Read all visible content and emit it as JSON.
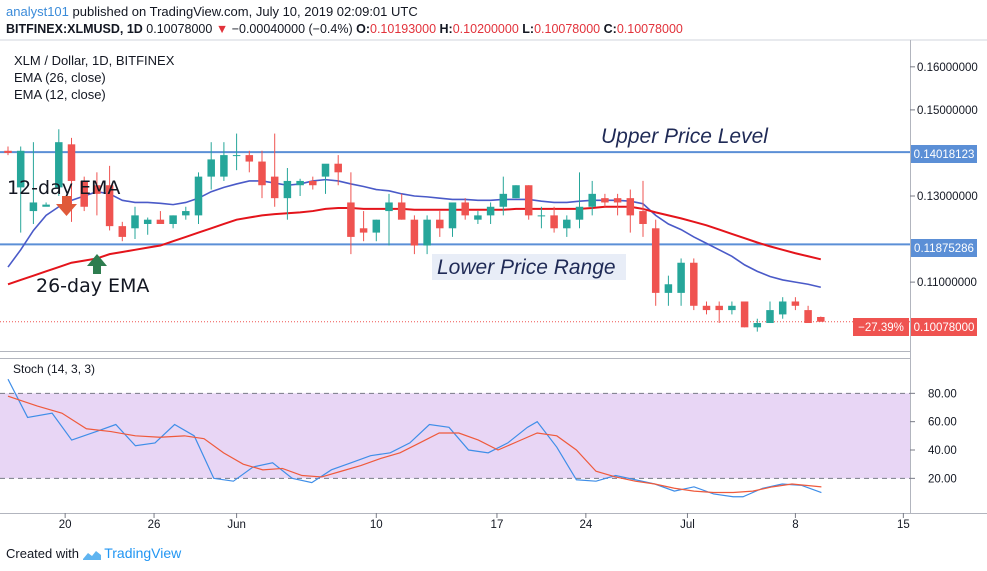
{
  "header": {
    "author": "analyst101",
    "published": "published on TradingView.com, July 10, 2019 02:09:01 UTC",
    "symbol": "BITFINEX:XLMUSD, 1D",
    "close_value": "0.10078000",
    "change": "−0.00040000 (−0.4%)",
    "open_label": "O:",
    "open": "0.10193000",
    "high_label": "H:",
    "high": "0.10200000",
    "low_label": "L:",
    "low": "0.10078000",
    "close_label": "C:",
    "close": "0.10078000"
  },
  "legend": {
    "title": "XLM / Dollar, 1D, BITFINEX",
    "ema26": "EMA (26, close)",
    "ema12": "EMA (12, close)",
    "stoch": "Stoch (14, 3, 3)"
  },
  "annotations": {
    "upper": "Upper Price Level",
    "lower": "Lower Price Range",
    "ema12": "12-day EMA",
    "ema26": "26-day EMA"
  },
  "price_labels": {
    "upper_level": "0.14018123",
    "lower_level": "0.11875286",
    "last_price": "0.10078000",
    "last_change": "−27.39%"
  },
  "footer": {
    "created": "Created with",
    "brand": "TradingView"
  },
  "colors": {
    "up": "#26a69a",
    "down": "#ef5350",
    "ema12": "#4a5ac8",
    "ema26": "#e4141b",
    "level": "#5b8fd6",
    "stochK": "#3f8ee8",
    "stochD": "#ef5a3c",
    "stochBand": "#e8d6f5",
    "lastPrice": "#ef5350"
  },
  "chart_data": [
    {
      "type": "candlestick",
      "title": "XLM / Dollar, 1D, BITFINEX",
      "ylim": [
        0.094,
        0.166
      ],
      "yticks": [
        "0.16000000",
        "0.15000000",
        "0.13000000",
        "0.11000000"
      ],
      "xticks": [
        "20",
        "26",
        "Jun",
        "10",
        "17",
        "24",
        "Jul",
        "8",
        "15"
      ],
      "levels": [
        {
          "name": "Upper Price Level",
          "value": 0.14018123
        },
        {
          "name": "Lower Price Range",
          "value": 0.11875286
        }
      ],
      "last_price": 0.10078,
      "candles": [
        {
          "o": 0.1405,
          "h": 0.1415,
          "l": 0.1395,
          "c": 0.14
        },
        {
          "o": 0.132,
          "h": 0.1415,
          "l": 0.1215,
          "c": 0.1405
        },
        {
          "o": 0.1265,
          "h": 0.1425,
          "l": 0.1235,
          "c": 0.1285
        },
        {
          "o": 0.1275,
          "h": 0.1285,
          "l": 0.128,
          "c": 0.128
        },
        {
          "o": 0.132,
          "h": 0.1455,
          "l": 0.13,
          "c": 0.1425
        },
        {
          "o": 0.142,
          "h": 0.1435,
          "l": 0.124,
          "c": 0.1335
        },
        {
          "o": 0.1335,
          "h": 0.1345,
          "l": 0.1265,
          "c": 0.1275
        },
        {
          "o": 0.1325,
          "h": 0.1355,
          "l": 0.1255,
          "c": 0.1305
        },
        {
          "o": 0.1325,
          "h": 0.137,
          "l": 0.122,
          "c": 0.123
        },
        {
          "o": 0.123,
          "h": 0.124,
          "l": 0.1195,
          "c": 0.1205
        },
        {
          "o": 0.1225,
          "h": 0.1275,
          "l": 0.12,
          "c": 0.1255
        },
        {
          "o": 0.1235,
          "h": 0.125,
          "l": 0.121,
          "c": 0.1245
        },
        {
          "o": 0.1245,
          "h": 0.1265,
          "l": 0.1235,
          "c": 0.1235
        },
        {
          "o": 0.1235,
          "h": 0.1255,
          "l": 0.1225,
          "c": 0.1255
        },
        {
          "o": 0.1255,
          "h": 0.1275,
          "l": 0.1245,
          "c": 0.1265
        },
        {
          "o": 0.1255,
          "h": 0.1355,
          "l": 0.1235,
          "c": 0.1345
        },
        {
          "o": 0.1345,
          "h": 0.1425,
          "l": 0.1315,
          "c": 0.1385
        },
        {
          "o": 0.1345,
          "h": 0.1425,
          "l": 0.1335,
          "c": 0.1395
        },
        {
          "o": 0.1395,
          "h": 0.1445,
          "l": 0.136,
          "c": 0.1395
        },
        {
          "o": 0.1395,
          "h": 0.1405,
          "l": 0.1355,
          "c": 0.138
        },
        {
          "o": 0.138,
          "h": 0.1405,
          "l": 0.1295,
          "c": 0.1325
        },
        {
          "o": 0.1345,
          "h": 0.1445,
          "l": 0.1275,
          "c": 0.1295
        },
        {
          "o": 0.1295,
          "h": 0.1365,
          "l": 0.1245,
          "c": 0.1335
        },
        {
          "o": 0.1325,
          "h": 0.134,
          "l": 0.13,
          "c": 0.1335
        },
        {
          "o": 0.1335,
          "h": 0.1345,
          "l": 0.1315,
          "c": 0.1325
        },
        {
          "o": 0.1345,
          "h": 0.137,
          "l": 0.1305,
          "c": 0.1375
        },
        {
          "o": 0.1375,
          "h": 0.1395,
          "l": 0.1325,
          "c": 0.1355
        },
        {
          "o": 0.1285,
          "h": 0.1355,
          "l": 0.1165,
          "c": 0.1205
        },
        {
          "o": 0.1225,
          "h": 0.1265,
          "l": 0.1195,
          "c": 0.1215
        },
        {
          "o": 0.1215,
          "h": 0.1245,
          "l": 0.1195,
          "c": 0.1245
        },
        {
          "o": 0.1265,
          "h": 0.1305,
          "l": 0.1185,
          "c": 0.1285
        },
        {
          "o": 0.1285,
          "h": 0.1305,
          "l": 0.1245,
          "c": 0.1245
        },
        {
          "o": 0.1245,
          "h": 0.1255,
          "l": 0.1165,
          "c": 0.1185
        },
        {
          "o": 0.1185,
          "h": 0.1255,
          "l": 0.1165,
          "c": 0.1245
        },
        {
          "o": 0.1245,
          "h": 0.1265,
          "l": 0.1205,
          "c": 0.1225
        },
        {
          "o": 0.1225,
          "h": 0.1285,
          "l": 0.1205,
          "c": 0.1285
        },
        {
          "o": 0.1285,
          "h": 0.1295,
          "l": 0.1245,
          "c": 0.1255
        },
        {
          "o": 0.1245,
          "h": 0.1265,
          "l": 0.1235,
          "c": 0.1255
        },
        {
          "o": 0.1255,
          "h": 0.1285,
          "l": 0.1235,
          "c": 0.1275
        },
        {
          "o": 0.1275,
          "h": 0.1345,
          "l": 0.1255,
          "c": 0.1305
        },
        {
          "o": 0.1295,
          "h": 0.1325,
          "l": 0.1295,
          "c": 0.1325
        },
        {
          "o": 0.1325,
          "h": 0.1325,
          "l": 0.1245,
          "c": 0.1255
        },
        {
          "o": 0.1255,
          "h": 0.1275,
          "l": 0.1225,
          "c": 0.1255
        },
        {
          "o": 0.1255,
          "h": 0.1275,
          "l": 0.1215,
          "c": 0.1225
        },
        {
          "o": 0.1225,
          "h": 0.1255,
          "l": 0.1205,
          "c": 0.1245
        },
        {
          "o": 0.1245,
          "h": 0.1355,
          "l": 0.1225,
          "c": 0.1275
        },
        {
          "o": 0.1275,
          "h": 0.1335,
          "l": 0.1255,
          "c": 0.1305
        },
        {
          "o": 0.1295,
          "h": 0.1305,
          "l": 0.1275,
          "c": 0.1285
        },
        {
          "o": 0.1295,
          "h": 0.1305,
          "l": 0.1255,
          "c": 0.1285
        },
        {
          "o": 0.1295,
          "h": 0.1315,
          "l": 0.1215,
          "c": 0.1255
        },
        {
          "o": 0.1265,
          "h": 0.1335,
          "l": 0.1205,
          "c": 0.1235
        },
        {
          "o": 0.1225,
          "h": 0.1245,
          "l": 0.1045,
          "c": 0.1075
        },
        {
          "o": 0.1075,
          "h": 0.1115,
          "l": 0.1045,
          "c": 0.1095
        },
        {
          "o": 0.1075,
          "h": 0.1155,
          "l": 0.1045,
          "c": 0.1145
        },
        {
          "o": 0.1145,
          "h": 0.1155,
          "l": 0.1035,
          "c": 0.1045
        },
        {
          "o": 0.1045,
          "h": 0.1055,
          "l": 0.1025,
          "c": 0.1035
        },
        {
          "o": 0.1045,
          "h": 0.1055,
          "l": 0.1005,
          "c": 0.1035
        },
        {
          "o": 0.1035,
          "h": 0.1055,
          "l": 0.1025,
          "c": 0.1045
        },
        {
          "o": 0.1055,
          "h": 0.1055,
          "l": 0.0995,
          "c": 0.0995
        },
        {
          "o": 0.0995,
          "h": 0.1015,
          "l": 0.0985,
          "c": 0.1005
        },
        {
          "o": 0.1005,
          "h": 0.1055,
          "l": 0.1005,
          "c": 0.1035
        },
        {
          "o": 0.1025,
          "h": 0.1065,
          "l": 0.1015,
          "c": 0.1055
        },
        {
          "o": 0.1055,
          "h": 0.1065,
          "l": 0.1035,
          "c": 0.1045
        },
        {
          "o": 0.1035,
          "h": 0.1045,
          "l": 0.1005,
          "c": 0.1005
        },
        {
          "o": 0.1019,
          "h": 0.102,
          "l": 0.1008,
          "c": 0.1008
        }
      ],
      "series": [
        {
          "name": "EMA (12, close)",
          "values": [
            0.1135,
            0.1175,
            0.122,
            0.1255,
            0.1275,
            0.129,
            0.13,
            0.131,
            0.1305,
            0.129,
            0.1285,
            0.1285,
            0.1283,
            0.128,
            0.1285,
            0.1295,
            0.131,
            0.132,
            0.1328,
            0.1335,
            0.1335,
            0.133,
            0.1325,
            0.1328,
            0.1335,
            0.1338,
            0.1335,
            0.1328,
            0.1322,
            0.1315,
            0.1312,
            0.1305,
            0.13,
            0.1298,
            0.1295,
            0.1292,
            0.1292,
            0.129,
            0.129,
            0.1292,
            0.1292,
            0.1292,
            0.1288,
            0.1285,
            0.1285,
            0.1288,
            0.129,
            0.129,
            0.129,
            0.1288,
            0.1282,
            0.1255,
            0.1235,
            0.1222,
            0.1205,
            0.119,
            0.1175,
            0.116,
            0.114,
            0.1125,
            0.1113,
            0.1105,
            0.11,
            0.1095,
            0.1088
          ]
        },
        {
          "name": "EMA (26, close)",
          "values": [
            0.1095,
            0.1105,
            0.1115,
            0.1125,
            0.1135,
            0.1145,
            0.115,
            0.1155,
            0.1165,
            0.117,
            0.1175,
            0.118,
            0.1185,
            0.1195,
            0.1205,
            0.1215,
            0.1225,
            0.1235,
            0.1245,
            0.125,
            0.1255,
            0.1258,
            0.126,
            0.1262,
            0.1265,
            0.127,
            0.1272,
            0.1272,
            0.127,
            0.127,
            0.127,
            0.127,
            0.1268,
            0.1268,
            0.1268,
            0.1268,
            0.1268,
            0.1268,
            0.1268,
            0.1268,
            0.127,
            0.127,
            0.127,
            0.127,
            0.127,
            0.127,
            0.1272,
            0.1275,
            0.1275,
            0.1275,
            0.127,
            0.1262,
            0.1255,
            0.1248,
            0.124,
            0.1232,
            0.1222,
            0.1212,
            0.1202,
            0.1192,
            0.1183,
            0.1175,
            0.1167,
            0.116,
            0.1153
          ]
        }
      ]
    },
    {
      "type": "line",
      "title": "Stoch (14, 3, 3)",
      "ylim": [
        0,
        100
      ],
      "yticks": [
        "80.00",
        "60.00",
        "40.00",
        "20.00"
      ],
      "band": [
        20,
        80
      ],
      "series": [
        {
          "name": "%K",
          "points": [
            [
              0,
              90
            ],
            [
              4,
              63
            ],
            [
              9,
              66
            ],
            [
              13,
              47
            ],
            [
              18,
              53
            ],
            [
              22,
              58
            ],
            [
              26,
              43
            ],
            [
              30,
              45
            ],
            [
              34,
              58
            ],
            [
              38,
              50
            ],
            [
              42,
              20
            ],
            [
              46,
              18
            ],
            [
              50,
              28
            ],
            [
              54,
              31
            ],
            [
              58,
              20
            ],
            [
              62,
              17
            ],
            [
              66,
              26
            ],
            [
              70,
              31
            ],
            [
              74,
              36
            ],
            [
              78,
              38
            ],
            [
              82,
              45
            ],
            [
              86,
              58
            ],
            [
              90,
              56
            ],
            [
              94,
              40
            ],
            [
              98,
              38
            ],
            [
              102,
              45
            ],
            [
              106,
              56
            ],
            [
              108,
              60
            ],
            [
              112,
              42
            ],
            [
              116,
              19
            ],
            [
              120,
              18
            ],
            [
              124,
              22
            ],
            [
              128,
              19
            ],
            [
              132,
              16
            ],
            [
              136,
              11
            ],
            [
              140,
              14
            ],
            [
              144,
              9
            ],
            [
              148,
              7
            ],
            [
              150,
              7
            ],
            [
              154,
              13
            ],
            [
              158,
              16
            ],
            [
              162,
              15
            ],
            [
              166,
              10
            ]
          ]
        },
        {
          "name": "%D",
          "points": [
            [
              0,
              78
            ],
            [
              6,
              71
            ],
            [
              11,
              66
            ],
            [
              16,
              55
            ],
            [
              21,
              53
            ],
            [
              26,
              50
            ],
            [
              31,
              49
            ],
            [
              36,
              50
            ],
            [
              40,
              48
            ],
            [
              44,
              38
            ],
            [
              48,
              30
            ],
            [
              52,
              26
            ],
            [
              56,
              27
            ],
            [
              60,
              22
            ],
            [
              64,
              21
            ],
            [
              68,
              25
            ],
            [
              72,
              29
            ],
            [
              76,
              34
            ],
            [
              80,
              38
            ],
            [
              84,
              45
            ],
            [
              88,
              52
            ],
            [
              92,
              52
            ],
            [
              96,
              47
            ],
            [
              100,
              40
            ],
            [
              104,
              46
            ],
            [
              108,
              52
            ],
            [
              112,
              50
            ],
            [
              116,
              40
            ],
            [
              120,
              25
            ],
            [
              124,
              21
            ],
            [
              128,
              18
            ],
            [
              132,
              16
            ],
            [
              136,
              13
            ],
            [
              140,
              11
            ],
            [
              144,
              10
            ],
            [
              148,
              10
            ],
            [
              152,
              11
            ],
            [
              156,
              14
            ],
            [
              160,
              16
            ],
            [
              166,
              14
            ]
          ]
        }
      ]
    }
  ]
}
